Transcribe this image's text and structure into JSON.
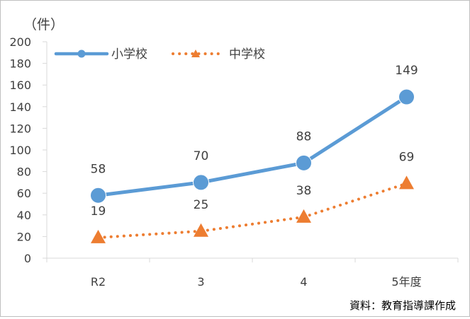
{
  "chart_data": {
    "type": "line",
    "unit_label": "（件）",
    "categories": [
      "R2",
      "3",
      "4",
      "5年度"
    ],
    "ylim": [
      0,
      200
    ],
    "yticks": [
      "0",
      "20",
      "40",
      "60",
      "80",
      "100",
      "120",
      "140",
      "160",
      "180",
      "200"
    ],
    "grid": false,
    "legend_position": "top-left",
    "series": [
      {
        "name": "小学校",
        "values": [
          58,
          70,
          88,
          149
        ],
        "color": "#5b9bd5",
        "marker": "circle",
        "line": "solid"
      },
      {
        "name": "中学校",
        "values": [
          19,
          25,
          38,
          69
        ],
        "color": "#ed7d31",
        "marker": "triangle",
        "line": "dotted"
      }
    ],
    "source": "資料：教育指導課作成"
  }
}
